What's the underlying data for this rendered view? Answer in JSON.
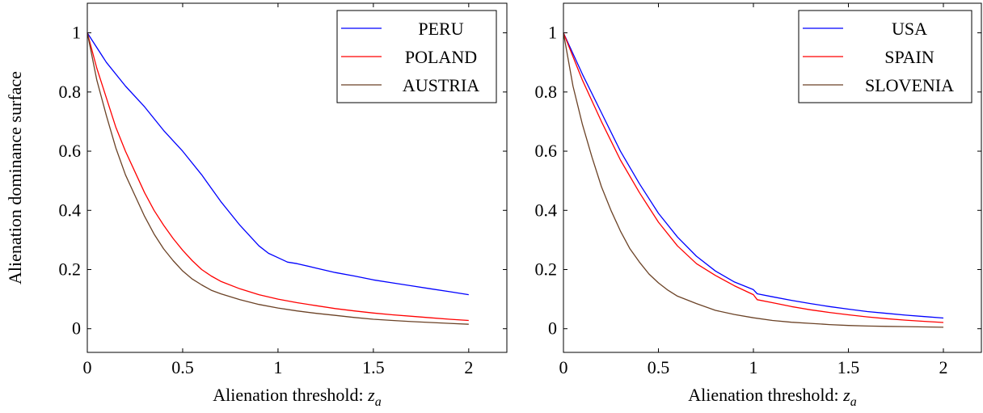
{
  "chart_data": [
    {
      "type": "line",
      "xlabel": "Alienation threshold: ",
      "xlabel_var": "z",
      "xlabel_sub": "a",
      "ylabel": "Alienation dominance surface",
      "xlim": [
        0,
        2.2
      ],
      "ylim": [
        -0.08,
        1.1
      ],
      "x_ticks": [
        0,
        0.5,
        1,
        1.5,
        2
      ],
      "y_ticks": [
        0,
        0.2,
        0.4,
        0.6,
        0.8,
        1
      ],
      "x_tick_labels": [
        "0",
        "0.5",
        "1",
        "1.5",
        "2"
      ],
      "y_tick_labels": [
        "0",
        "0.2",
        "0.4",
        "0.6",
        "0.8",
        "1"
      ],
      "grid": false,
      "legend_position": "top-right",
      "series": [
        {
          "name": "PERU",
          "color": "#0000ff",
          "x": [
            0,
            0.1,
            0.2,
            0.3,
            0.4,
            0.5,
            0.6,
            0.7,
            0.8,
            0.9,
            0.95,
            1.0,
            1.05,
            1.1,
            1.2,
            1.3,
            1.4,
            1.5,
            1.6,
            1.7,
            1.8,
            1.9,
            2.0
          ],
          "y": [
            1.0,
            0.9,
            0.82,
            0.75,
            0.67,
            0.6,
            0.52,
            0.43,
            0.35,
            0.28,
            0.255,
            0.24,
            0.225,
            0.22,
            0.205,
            0.19,
            0.178,
            0.165,
            0.155,
            0.145,
            0.135,
            0.125,
            0.115
          ]
        },
        {
          "name": "POLAND",
          "color": "#ff0000",
          "x": [
            0,
            0.05,
            0.1,
            0.15,
            0.2,
            0.25,
            0.3,
            0.35,
            0.4,
            0.45,
            0.5,
            0.55,
            0.6,
            0.65,
            0.7,
            0.8,
            0.9,
            1.0,
            1.1,
            1.2,
            1.3,
            1.4,
            1.5,
            1.6,
            1.7,
            1.8,
            1.9,
            2.0
          ],
          "y": [
            1.0,
            0.88,
            0.78,
            0.68,
            0.6,
            0.53,
            0.46,
            0.4,
            0.35,
            0.305,
            0.265,
            0.23,
            0.2,
            0.178,
            0.16,
            0.135,
            0.115,
            0.1,
            0.088,
            0.078,
            0.068,
            0.06,
            0.053,
            0.047,
            0.042,
            0.037,
            0.032,
            0.028
          ]
        },
        {
          "name": "AUSTRIA",
          "color": "#6b4226",
          "x": [
            0,
            0.05,
            0.1,
            0.15,
            0.2,
            0.25,
            0.3,
            0.35,
            0.4,
            0.45,
            0.5,
            0.55,
            0.6,
            0.65,
            0.7,
            0.8,
            0.9,
            1.0,
            1.1,
            1.2,
            1.3,
            1.4,
            1.5,
            1.6,
            1.7,
            1.8,
            1.9,
            2.0
          ],
          "y": [
            1.0,
            0.84,
            0.72,
            0.61,
            0.52,
            0.45,
            0.38,
            0.32,
            0.27,
            0.23,
            0.195,
            0.168,
            0.148,
            0.13,
            0.118,
            0.098,
            0.082,
            0.07,
            0.06,
            0.052,
            0.045,
            0.038,
            0.032,
            0.028,
            0.024,
            0.021,
            0.018,
            0.015
          ]
        }
      ]
    },
    {
      "type": "line",
      "xlabel": "Alienation threshold: ",
      "xlabel_var": "z",
      "xlabel_sub": "a",
      "ylabel": "",
      "xlim": [
        0,
        2.2
      ],
      "ylim": [
        -0.08,
        1.1
      ],
      "x_ticks": [
        0,
        0.5,
        1,
        1.5,
        2
      ],
      "y_ticks": [
        0,
        0.2,
        0.4,
        0.6,
        0.8,
        1
      ],
      "x_tick_labels": [
        "0",
        "0.5",
        "1",
        "1.5",
        "2"
      ],
      "y_tick_labels": [
        "0",
        "0.2",
        "0.4",
        "0.6",
        "0.8",
        "1"
      ],
      "grid": false,
      "legend_position": "top-right",
      "series": [
        {
          "name": "USA",
          "color": "#0000ff",
          "x": [
            0,
            0.1,
            0.2,
            0.3,
            0.4,
            0.5,
            0.6,
            0.7,
            0.8,
            0.9,
            0.95,
            1.0,
            1.02,
            1.1,
            1.2,
            1.3,
            1.4,
            1.5,
            1.6,
            1.7,
            1.8,
            1.9,
            2.0
          ],
          "y": [
            1.0,
            0.86,
            0.73,
            0.6,
            0.49,
            0.39,
            0.31,
            0.245,
            0.195,
            0.158,
            0.145,
            0.132,
            0.118,
            0.108,
            0.096,
            0.085,
            0.075,
            0.066,
            0.058,
            0.052,
            0.046,
            0.041,
            0.036
          ]
        },
        {
          "name": "SPAIN",
          "color": "#ff0000",
          "x": [
            0,
            0.1,
            0.2,
            0.3,
            0.4,
            0.5,
            0.6,
            0.7,
            0.8,
            0.9,
            0.95,
            1.0,
            1.02,
            1.1,
            1.2,
            1.3,
            1.4,
            1.5,
            1.6,
            1.7,
            1.8,
            1.9,
            2.0
          ],
          "y": [
            1.0,
            0.84,
            0.7,
            0.57,
            0.46,
            0.36,
            0.28,
            0.22,
            0.18,
            0.145,
            0.13,
            0.115,
            0.098,
            0.088,
            0.075,
            0.064,
            0.055,
            0.047,
            0.04,
            0.034,
            0.029,
            0.025,
            0.021
          ]
        },
        {
          "name": "SLOVENIA",
          "color": "#6b4226",
          "x": [
            0,
            0.05,
            0.1,
            0.15,
            0.2,
            0.25,
            0.3,
            0.35,
            0.4,
            0.45,
            0.5,
            0.55,
            0.6,
            0.7,
            0.8,
            0.9,
            1.0,
            1.1,
            1.2,
            1.3,
            1.4,
            1.5,
            1.6,
            1.7,
            1.8,
            1.9,
            2.0
          ],
          "y": [
            1.0,
            0.82,
            0.69,
            0.58,
            0.48,
            0.4,
            0.33,
            0.27,
            0.225,
            0.185,
            0.155,
            0.13,
            0.11,
            0.085,
            0.062,
            0.048,
            0.037,
            0.028,
            0.022,
            0.018,
            0.014,
            0.011,
            0.009,
            0.008,
            0.007,
            0.006,
            0.005
          ]
        }
      ]
    }
  ]
}
